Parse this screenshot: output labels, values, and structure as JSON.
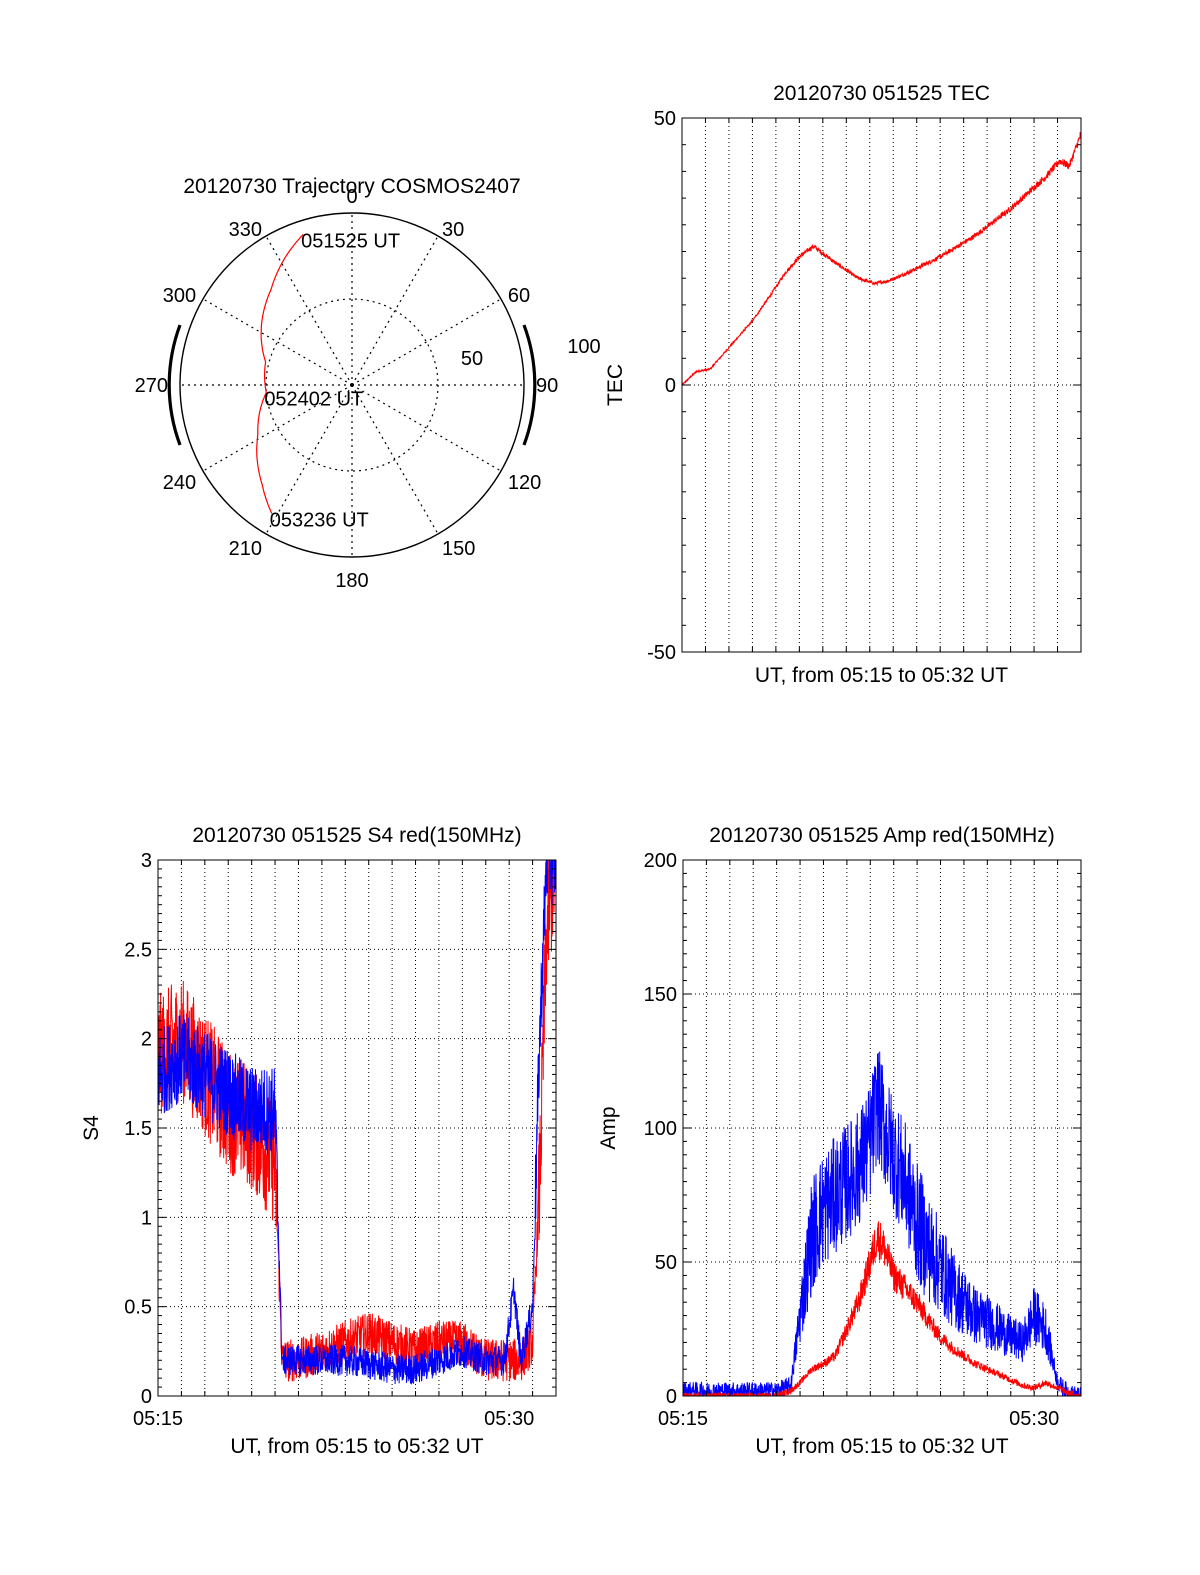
{
  "colors": {
    "red": "#ff0000",
    "blue": "#0000ff",
    "axis": "#000000",
    "grid": "#000000"
  },
  "chart_data": [
    {
      "type": "polar",
      "title": "20120730 Trajectory COSMOS2407",
      "angle_labels": [
        "0",
        "30",
        "60",
        "90",
        "120",
        "150",
        "180",
        "210",
        "240",
        "270",
        "300",
        "330"
      ],
      "radial_labels": [
        "50",
        "100"
      ],
      "rlim": [
        0,
        100
      ],
      "radial_grid": [
        50
      ],
      "angle_grid_step_deg": 30,
      "grid": true,
      "series": [
        {
          "color": "red",
          "points": [
            {
              "az": 342,
              "el": 8
            },
            {
              "az": 320,
              "el": 27
            },
            {
              "az": 285,
              "el": 48
            },
            {
              "az": 265,
              "el": 50
            },
            {
              "az": 242,
              "el": 38
            },
            {
              "az": 222,
              "el": 22
            },
            {
              "az": 212,
              "el": 12
            }
          ]
        }
      ],
      "annotations": [
        {
          "text": "051525 UT",
          "az": 342,
          "el": 8
        },
        {
          "text": "052402 UT",
          "az": 265,
          "el": 50
        },
        {
          "text": "053236 UT",
          "az": 212,
          "el": 12
        }
      ]
    },
    {
      "type": "line",
      "title": "20120730 051525 TEC",
      "xlabel": "UT, from 05:15 to 05:32 UT",
      "ylabel": "TEC",
      "xlim": [
        0,
        17
      ],
      "ylim": [
        -50,
        50
      ],
      "yticks": [
        -50,
        0,
        50
      ],
      "xticks": [],
      "grid": true,
      "series": [
        {
          "color": "red",
          "x": [
            0,
            0.6,
            1.2,
            2,
            3,
            3.8,
            4.4,
            5.0,
            5.6,
            6.5,
            7.5,
            8.2,
            8.8,
            9.6,
            11,
            12.5,
            14,
            15.5,
            16.1,
            16.5,
            17
          ],
          "y": [
            0,
            2.5,
            3,
            7,
            12,
            17,
            21,
            24,
            26,
            23,
            20,
            19,
            19.5,
            21,
            24,
            28,
            33,
            39,
            42,
            41,
            47
          ],
          "noise": 1.0
        }
      ]
    },
    {
      "type": "line",
      "title": "20120730 051525 S4 red(150MHz)",
      "xlabel": "UT, from 05:15 to 05:32 UT",
      "ylabel": "S4",
      "xlim": [
        0,
        17
      ],
      "ylim": [
        0,
        3
      ],
      "yticks": [
        0,
        0.5,
        1,
        1.5,
        2,
        2.5,
        3
      ],
      "yticklabels": [
        "0",
        "0.5",
        "1",
        "1.5",
        "2",
        "2.5",
        "3"
      ],
      "xticks": [
        0,
        15
      ],
      "xticklabels": [
        "05:15",
        "05:30"
      ],
      "grid": true,
      "series": [
        {
          "color": "red",
          "x": [
            0,
            1,
            2,
            3,
            4,
            5,
            5.3,
            6,
            7,
            8,
            9,
            10,
            11,
            12,
            13,
            14,
            14.8,
            15.5,
            16.0,
            16.3,
            16.6,
            17
          ],
          "y": [
            1.9,
            2.0,
            1.8,
            1.6,
            1.5,
            1.3,
            0.2,
            0.2,
            0.25,
            0.3,
            0.35,
            0.3,
            0.25,
            0.3,
            0.3,
            0.2,
            0.2,
            0.2,
            0.3,
            1.2,
            2.6,
            3.0
          ],
          "noise": 0.35
        },
        {
          "color": "blue",
          "x": [
            0,
            1,
            2,
            3,
            4,
            5,
            5.3,
            6,
            7,
            8,
            9,
            10,
            11,
            12,
            13,
            14,
            14.8,
            15.2,
            15.5,
            16.0,
            16.3,
            16.6,
            17
          ],
          "y": [
            1.8,
            1.9,
            1.8,
            1.7,
            1.6,
            1.6,
            0.2,
            0.2,
            0.2,
            0.2,
            0.18,
            0.15,
            0.15,
            0.2,
            0.25,
            0.2,
            0.2,
            0.6,
            0.2,
            0.5,
            2.0,
            3.0,
            3.0
          ],
          "noise": 0.25
        }
      ]
    },
    {
      "type": "line",
      "title": "20120730 051525 Amp red(150MHz)",
      "xlabel": "UT, from 05:15 to 05:32 UT",
      "ylabel": "Amp",
      "xlim": [
        0,
        17
      ],
      "ylim": [
        0,
        200
      ],
      "yticks": [
        0,
        50,
        100,
        150,
        200
      ],
      "yticklabels": [
        "0",
        "50",
        "100",
        "150",
        "200"
      ],
      "xticks": [
        0,
        15
      ],
      "xticklabels": [
        "05:15",
        "05:30"
      ],
      "grid": true,
      "series": [
        {
          "color": "blue",
          "x": [
            0,
            2,
            4,
            4.6,
            5.0,
            5.5,
            6.0,
            6.5,
            7.0,
            7.5,
            8.0,
            8.3,
            8.6,
            9.0,
            9.5,
            10.0,
            10.5,
            11.0,
            11.5,
            12.0,
            12.5,
            13.0,
            13.5,
            14.0,
            14.5,
            15.0,
            15.5,
            16.0,
            16.5,
            17.0
          ],
          "y": [
            2,
            2,
            2,
            4,
            30,
            60,
            70,
            75,
            80,
            85,
            95,
            110,
            100,
            90,
            80,
            65,
            55,
            48,
            40,
            35,
            30,
            28,
            25,
            22,
            20,
            30,
            25,
            5,
            1,
            0
          ],
          "noise": 22
        },
        {
          "color": "red",
          "x": [
            0,
            2,
            4,
            4.6,
            5.0,
            5.5,
            6.0,
            6.5,
            7.0,
            7.5,
            8.0,
            8.3,
            8.6,
            9.0,
            9.5,
            10.0,
            10.5,
            11.0,
            11.5,
            12.0,
            12.5,
            13.0,
            13.5,
            14.0,
            14.5,
            15.0,
            15.5,
            16.0,
            16.5,
            17.0
          ],
          "y": [
            0,
            0,
            0,
            2,
            5,
            10,
            12,
            15,
            25,
            35,
            50,
            60,
            55,
            45,
            40,
            35,
            28,
            22,
            18,
            15,
            12,
            10,
            8,
            6,
            4,
            3,
            5,
            3,
            1,
            0
          ],
          "noise": 8
        }
      ]
    }
  ]
}
